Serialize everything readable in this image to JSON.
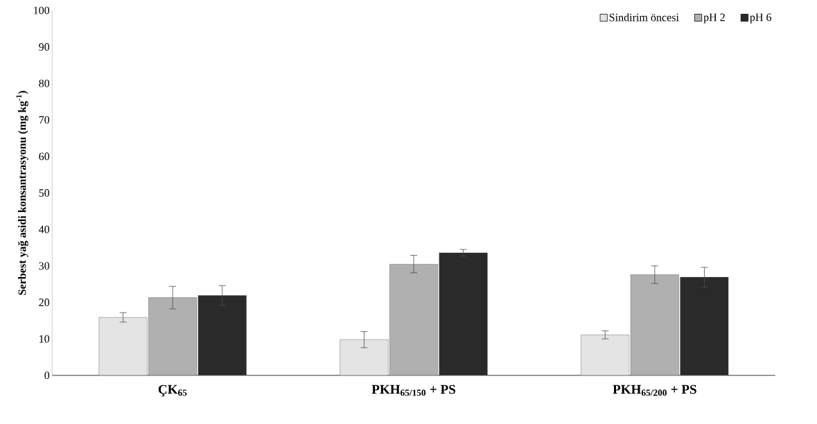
{
  "chart_data": {
    "type": "bar",
    "ylabel": "Serbest yağ asidi konsantrasyonu (mg kg$^{-1}$)",
    "categories": [
      "ÇK$_{65}$",
      "PKH$_{65/150}$ + PS",
      "PKH$_{65/200}$ + PS"
    ],
    "series": [
      {
        "name": "Sindirim öncesi",
        "color": "#e4e4e4",
        "values": [
          15.9,
          9.8,
          11.1
        ],
        "errors": [
          1.3,
          2.2,
          1.1
        ]
      },
      {
        "name": "pH 2",
        "color": "#b0b0b0",
        "values": [
          21.3,
          30.5,
          27.6
        ],
        "errors": [
          3.1,
          2.4,
          2.4
        ]
      },
      {
        "name": "pH 6",
        "color": "#2a2a2a",
        "values": [
          21.9,
          33.6,
          26.9
        ],
        "errors": [
          2.7,
          0.9,
          2.7
        ]
      }
    ],
    "ylim": [
      0,
      100
    ],
    "yticks": [
      0,
      10,
      20,
      30,
      40,
      50,
      60,
      70,
      80,
      90,
      100
    ],
    "legend": "top right",
    "grid": false
  }
}
